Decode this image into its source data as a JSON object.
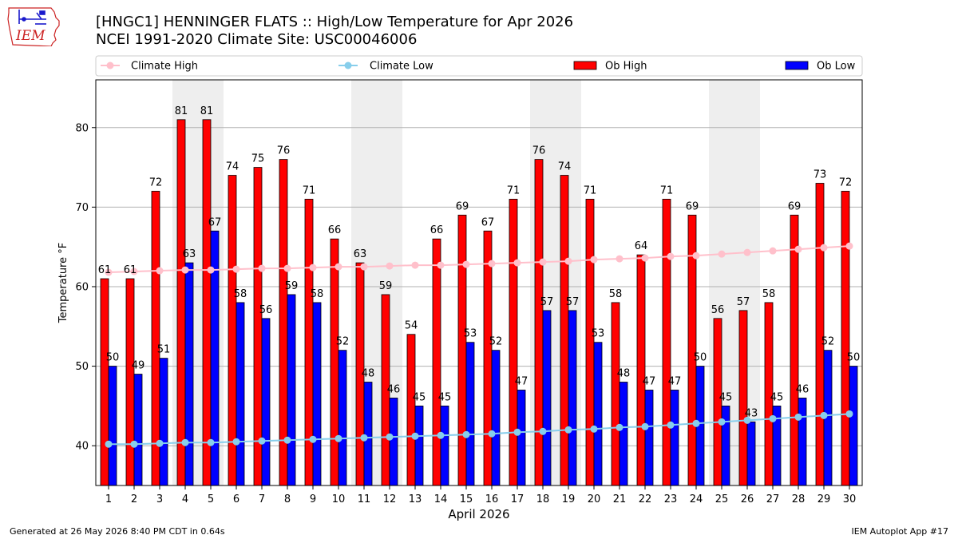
{
  "header": {
    "title_line1": "[HNGC1] HENNINGER FLATS :: High/Low Temperature for Apr 2026",
    "title_line2": "NCEI 1991-2020 Climate Site: USC00046006"
  },
  "logo": {
    "text": "IEM",
    "icon": "iowa-state-outline-logo",
    "color": "#cc2222"
  },
  "footer": {
    "left": "Generated at 26 May 2026 8:40 PM CDT in 0.64s",
    "right": "IEM Autoplot App #17"
  },
  "chart_data": {
    "type": "bar",
    "xlabel": "April 2026",
    "ylabel": "Temperature °F",
    "ylim": [
      35,
      86
    ],
    "yticks": [
      40,
      50,
      60,
      70,
      80
    ],
    "grid": "horizontal",
    "legend_position": "top",
    "categories": [
      "1",
      "2",
      "3",
      "4",
      "5",
      "6",
      "7",
      "8",
      "9",
      "10",
      "11",
      "12",
      "13",
      "14",
      "15",
      "16",
      "17",
      "18",
      "19",
      "20",
      "21",
      "22",
      "23",
      "24",
      "25",
      "26",
      "27",
      "28",
      "29",
      "30"
    ],
    "weekend_shading": [
      [
        4,
        5
      ],
      [
        11,
        12
      ],
      [
        18,
        19
      ],
      [
        25,
        26
      ]
    ],
    "series": [
      {
        "name": "Climate High",
        "kind": "line",
        "color": "#ffc0cb",
        "values": [
          61.8,
          61.9,
          62.0,
          62.1,
          62.1,
          62.2,
          62.3,
          62.3,
          62.4,
          62.5,
          62.5,
          62.6,
          62.7,
          62.7,
          62.8,
          62.9,
          63.0,
          63.1,
          63.2,
          63.4,
          63.5,
          63.6,
          63.8,
          63.9,
          64.1,
          64.3,
          64.5,
          64.7,
          64.9,
          65.1
        ]
      },
      {
        "name": "Climate Low",
        "kind": "line",
        "color": "#87ceeb",
        "values": [
          40.2,
          40.2,
          40.3,
          40.4,
          40.4,
          40.5,
          40.6,
          40.7,
          40.8,
          40.9,
          41.0,
          41.1,
          41.2,
          41.3,
          41.4,
          41.5,
          41.7,
          41.8,
          42.0,
          42.1,
          42.3,
          42.4,
          42.6,
          42.8,
          43.0,
          43.2,
          43.4,
          43.6,
          43.8,
          44.0
        ]
      },
      {
        "name": "Ob High",
        "kind": "bar",
        "color": "#ff0000",
        "values": [
          61,
          61,
          72,
          81,
          81,
          74,
          75,
          76,
          71,
          66,
          63,
          59,
          54,
          66,
          69,
          67,
          71,
          76,
          74,
          71,
          58,
          64,
          71,
          69,
          56,
          57,
          58,
          69,
          73,
          72
        ]
      },
      {
        "name": "Ob Low",
        "kind": "bar",
        "color": "#0000ff",
        "values": [
          50,
          49,
          51,
          63,
          67,
          58,
          56,
          59,
          58,
          52,
          48,
          46,
          45,
          45,
          53,
          52,
          47,
          57,
          57,
          53,
          48,
          47,
          47,
          50,
          45,
          43,
          45,
          46,
          52,
          50
        ]
      }
    ]
  }
}
